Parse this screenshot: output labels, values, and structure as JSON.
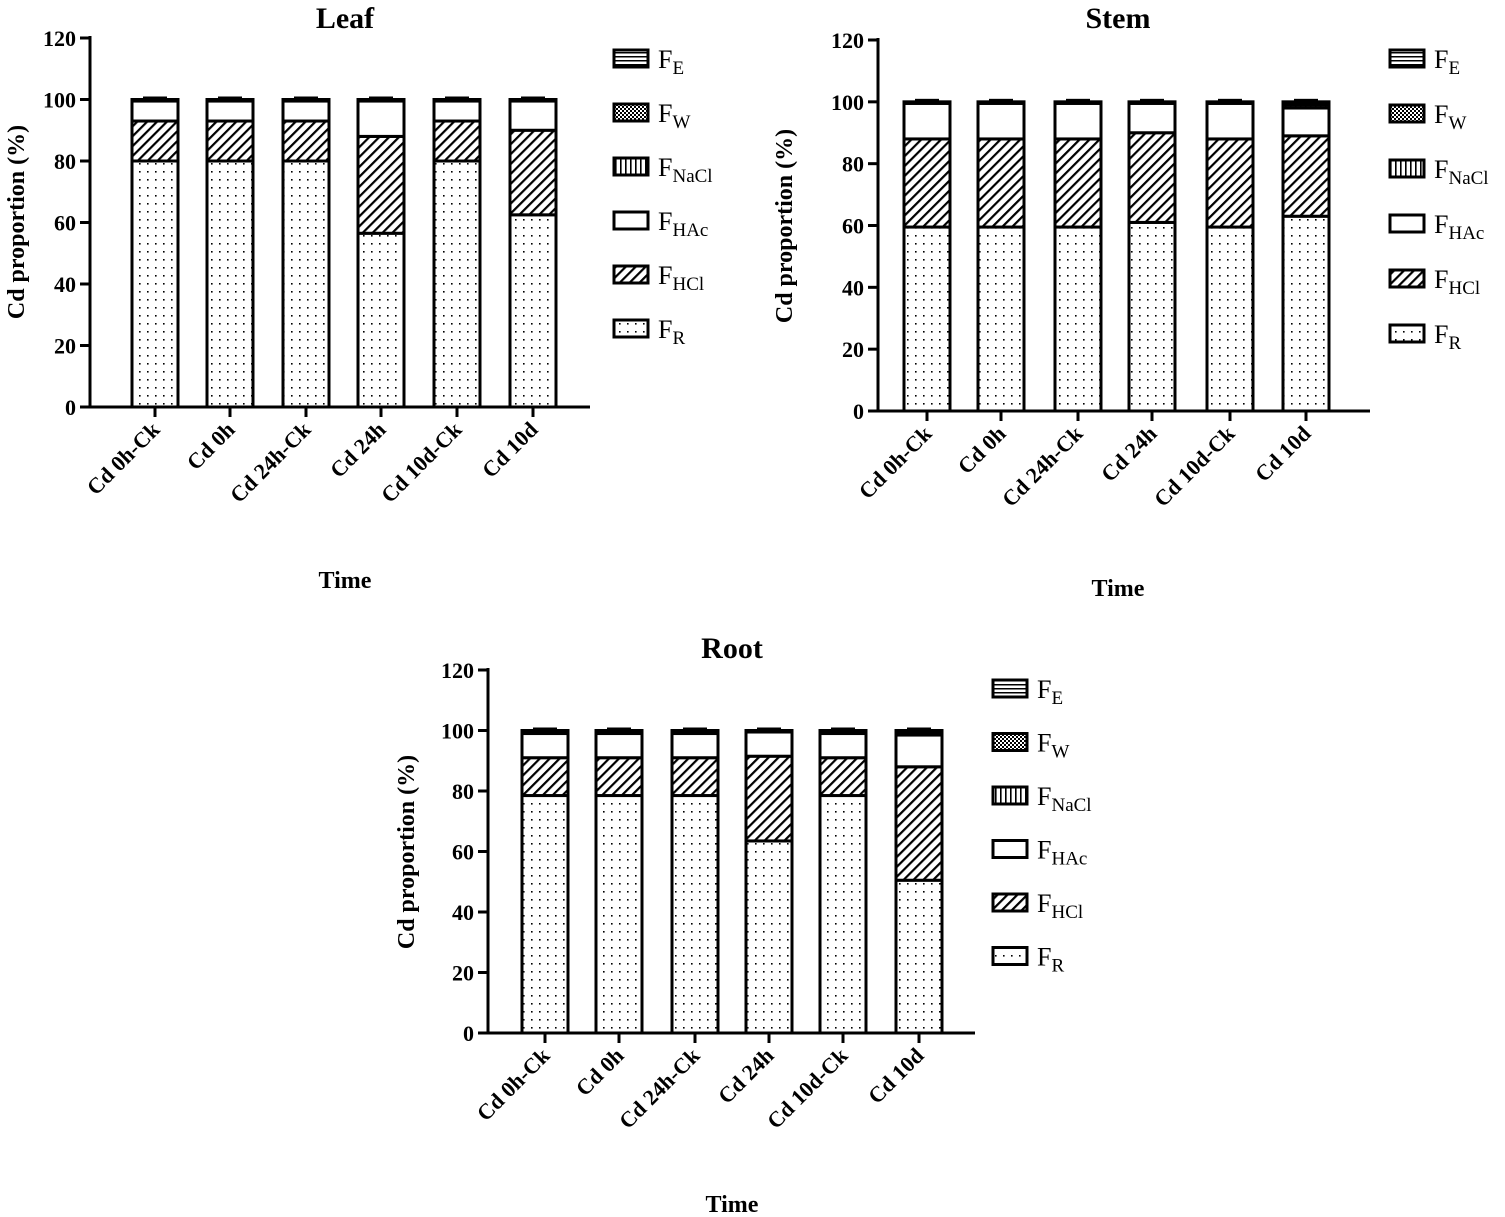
{
  "legend": [
    {
      "key": "FE",
      "main": "F",
      "sub": "E"
    },
    {
      "key": "FW",
      "main": "F",
      "sub": "W"
    },
    {
      "key": "FNaCl",
      "main": "F",
      "sub": "NaCl"
    },
    {
      "key": "FHAc",
      "main": "F",
      "sub": "HAc"
    },
    {
      "key": "FHCl",
      "main": "F",
      "sub": "HCl"
    },
    {
      "key": "FR",
      "main": "F",
      "sub": "R"
    }
  ],
  "chart_data": [
    {
      "type": "bar",
      "stacked": true,
      "title": "Leaf",
      "xlabel": "Time",
      "ylabel": "Cd proportion (%)",
      "ylim": [
        0,
        120
      ],
      "yticks": [
        "0",
        "20",
        "40",
        "60",
        "80",
        "100",
        "120"
      ],
      "grid": false,
      "legend": "right",
      "categories": [
        "Cd 0h-Ck",
        "Cd 0h",
        "Cd 24h-Ck",
        "Cd 24h",
        "Cd 10d-Ck",
        "Cd 10d"
      ],
      "series": [
        {
          "name": "FR",
          "values": [
            80,
            80,
            80,
            56.5,
            80,
            62.5
          ]
        },
        {
          "name": "FHCl",
          "values": [
            13,
            13,
            13,
            31.5,
            13,
            27.5
          ]
        },
        {
          "name": "FHAc",
          "values": [
            6.5,
            6.5,
            6.5,
            11.5,
            6.5,
            9.5
          ]
        },
        {
          "name": "FNaCl",
          "values": [
            0.3,
            0.3,
            0.3,
            0.3,
            0.3,
            0.3
          ]
        },
        {
          "name": "FW",
          "values": [
            0.1,
            0.1,
            0.1,
            0.1,
            0.1,
            0.1
          ]
        },
        {
          "name": "FE",
          "values": [
            0.1,
            0.1,
            0.1,
            0.1,
            0.1,
            0.1
          ]
        }
      ]
    },
    {
      "type": "bar",
      "stacked": true,
      "title": "Stem",
      "xlabel": "Time",
      "ylabel": "Cd proportion (%)",
      "ylim": [
        0,
        120
      ],
      "yticks": [
        "0",
        "20",
        "40",
        "60",
        "80",
        "100",
        "120"
      ],
      "grid": false,
      "legend": "right",
      "categories": [
        "Cd 0h-Ck",
        "Cd 0h",
        "Cd 24h-Ck",
        "Cd 24h",
        "Cd 10d-Ck",
        "Cd 10d"
      ],
      "series": [
        {
          "name": "FR",
          "values": [
            59.5,
            59.5,
            59.5,
            61,
            59.5,
            63
          ]
        },
        {
          "name": "FHCl",
          "values": [
            28.5,
            28.5,
            28.5,
            29,
            28.5,
            26
          ]
        },
        {
          "name": "FHAc",
          "values": [
            11.5,
            11.5,
            11.5,
            9.5,
            11.5,
            9
          ]
        },
        {
          "name": "FNaCl",
          "values": [
            0.3,
            0.3,
            0.3,
            0.3,
            0.3,
            1
          ]
        },
        {
          "name": "FW",
          "values": [
            0.1,
            0.1,
            0.1,
            0.1,
            0.1,
            0.5
          ]
        },
        {
          "name": "FE",
          "values": [
            0.1,
            0.1,
            0.1,
            0.1,
            0.1,
            0.5
          ]
        }
      ]
    },
    {
      "type": "bar",
      "stacked": true,
      "title": "Root",
      "xlabel": "Time",
      "ylabel": "Cd proportion (%)",
      "ylim": [
        0,
        120
      ],
      "yticks": [
        "0",
        "20",
        "40",
        "60",
        "80",
        "100",
        "120"
      ],
      "grid": false,
      "legend": "right",
      "categories": [
        "Cd 0h-Ck",
        "Cd 0h",
        "Cd 24h-Ck",
        "Cd 24h",
        "Cd 10d-Ck",
        "Cd 10d"
      ],
      "series": [
        {
          "name": "FR",
          "values": [
            78.5,
            78.5,
            78.5,
            63.5,
            78.5,
            50.5
          ]
        },
        {
          "name": "FHCl",
          "values": [
            12.5,
            12.5,
            12.5,
            28,
            12.5,
            37.5
          ]
        },
        {
          "name": "FHAc",
          "values": [
            8,
            8,
            8,
            8,
            8,
            10.5
          ]
        },
        {
          "name": "FNaCl",
          "values": [
            0.6,
            0.6,
            0.6,
            0.3,
            0.6,
            0.8
          ]
        },
        {
          "name": "FW",
          "values": [
            0.2,
            0.2,
            0.2,
            0.1,
            0.2,
            0.4
          ]
        },
        {
          "name": "FE",
          "values": [
            0.2,
            0.2,
            0.2,
            0.1,
            0.2,
            0.3
          ]
        }
      ]
    }
  ]
}
